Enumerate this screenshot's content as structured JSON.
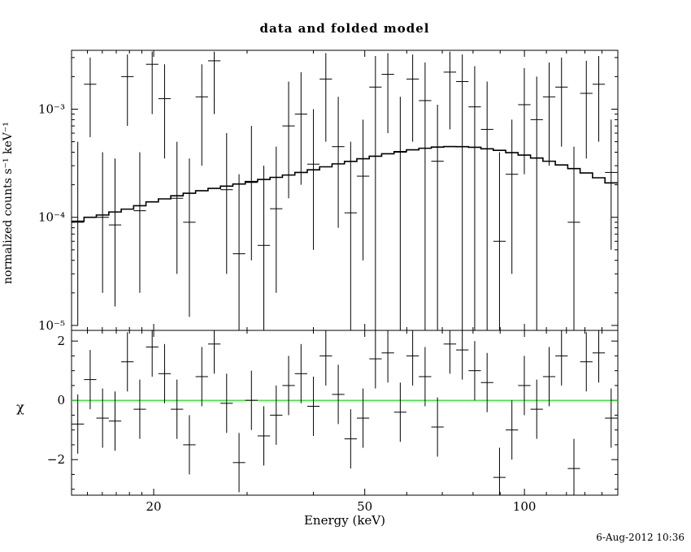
{
  "title": "data and folded model",
  "xlabel": "Energy (keV)",
  "ylabel_top": "normalized counts s⁻¹ keV⁻¹",
  "ylabel_bottom": "χ",
  "timestamp": "6-Aug-2012 10:36",
  "colors": {
    "data": "#000000",
    "model": "#000000",
    "zero_line": "#00dd00",
    "frame": "#000000",
    "background": "#ffffff"
  },
  "chart_data": {
    "type": "scatter",
    "title": "data and folded model",
    "xlabel": "Energy (keV)",
    "legend": "none",
    "grid": false,
    "panels": [
      "spectrum",
      "residuals"
    ],
    "axes": {
      "x": {
        "scale": "log",
        "min": 14,
        "max": 150,
        "major_ticks": [
          20,
          50,
          100
        ],
        "major_labels": [
          "20",
          "50",
          "100"
        ],
        "minor_ticks": [
          15,
          16,
          17,
          18,
          19,
          30,
          40,
          60,
          70,
          80,
          90,
          110,
          120,
          130,
          140,
          150
        ]
      },
      "y_top": {
        "scale": "log",
        "min": 9e-06,
        "max": 0.0035,
        "label": "normalized counts s⁻¹ keV⁻¹",
        "major_ticks": [
          1e-05,
          0.0001,
          0.001
        ],
        "major_labels": [
          "10⁻⁵",
          "10⁻⁴",
          "10⁻³"
        ]
      },
      "y_bottom": {
        "scale": "linear",
        "min": -3.2,
        "max": 2.36,
        "label": "χ",
        "major_ticks": [
          -2,
          0,
          2
        ],
        "major_labels": [
          "−2",
          "0",
          "2"
        ],
        "minor_step": 0.5
      }
    },
    "spectrum": {
      "bin_edges_kev": [
        14.0,
        14.78,
        15.59,
        16.46,
        17.37,
        18.33,
        19.34,
        20.41,
        21.54,
        22.73,
        23.99,
        25.32,
        26.72,
        28.2,
        29.76,
        31.4,
        33.14,
        34.97,
        36.91,
        38.95,
        41.1,
        43.38,
        45.78,
        48.31,
        50.98,
        53.8,
        56.78,
        59.92,
        63.24,
        66.74,
        70.43,
        74.33,
        78.44,
        82.78,
        87.36,
        92.19,
        97.29,
        102.68,
        108.36,
        114.35,
        120.68,
        127.35,
        134.4,
        141.84,
        149.68
      ],
      "data_counts": [
        9e-05,
        0.0017,
        0.0001,
        8.5e-05,
        0.002,
        0.000115,
        0.0026,
        0.00125,
        0.00015,
        9e-05,
        0.0013,
        0.0028,
        0.00018,
        4.6e-05,
        0.00021,
        5.5e-05,
        0.00012,
        0.0007,
        0.0009,
        0.00031,
        0.0019,
        0.00045,
        0.00011,
        0.00024,
        0.0016,
        0.0021,
        0.0004,
        0.0019,
        0.0012,
        0.00033,
        0.0022,
        0.0018,
        0.00105,
        0.00065,
        6e-05,
        0.00025,
        0.0011,
        0.0008,
        0.0013,
        0.0016,
        9e-05,
        0.0014,
        0.0017,
        0.00026
      ],
      "err_lo": [
        1e-05,
        0.00055,
        2e-05,
        1.5e-05,
        0.0007,
        2e-05,
        0.0009,
        0.00035,
        3e-05,
        1.2e-05,
        0.0003,
        0.0009,
        3e-05,
        8e-06,
        4e-05,
        8e-06,
        2e-05,
        0.00015,
        0.0002,
        5e-05,
        0.0005,
        8e-05,
        8e-06,
        4e-05,
        8e-06,
        0.0006,
        8e-06,
        0.0005,
        8e-06,
        8e-06,
        0.00065,
        8e-06,
        8e-06,
        8e-06,
        8e-06,
        3e-05,
        0.00025,
        8e-06,
        0.0003,
        0.00045,
        8e-06,
        0.00035,
        0.0005,
        5e-05
      ],
      "err_hi": [
        0.0005,
        0.003,
        0.0004,
        0.00035,
        0.0032,
        0.0004,
        0.0034,
        0.0026,
        0.0005,
        0.00035,
        0.0026,
        0.0034,
        0.0006,
        0.00025,
        0.0007,
        0.0003,
        0.00045,
        0.0018,
        0.0022,
        0.001,
        0.0033,
        0.0013,
        0.0005,
        0.0008,
        0.0031,
        0.0033,
        0.0013,
        0.0032,
        0.0027,
        0.0011,
        0.0034,
        0.0032,
        0.0025,
        0.0018,
        0.0004,
        0.0008,
        0.0024,
        0.002,
        0.0027,
        0.003,
        0.00045,
        0.0028,
        0.0031,
        0.0008
      ],
      "model_counts": [
        9.2e-05,
        0.0001,
        0.000105,
        0.000112,
        0.000119,
        0.000128,
        0.000139,
        0.000148,
        0.000158,
        0.000167,
        0.000176,
        0.000185,
        0.000194,
        0.000203,
        0.000214,
        0.000224,
        0.000234,
        0.000246,
        0.00026,
        0.000275,
        0.000293,
        0.000312,
        0.000329,
        0.000348,
        0.000367,
        0.000387,
        0.000405,
        0.000421,
        0.000435,
        0.000446,
        0.000451,
        0.00045,
        0.000444,
        0.00043,
        0.000416,
        0.000396,
        0.000376,
        0.000353,
        0.00033,
        0.000305,
        0.000282,
        0.000257,
        0.000232,
        0.000208
      ]
    },
    "residuals": {
      "chi": [
        -0.8,
        0.7,
        -0.6,
        -0.7,
        1.3,
        -0.3,
        1.8,
        0.9,
        -0.3,
        -1.5,
        0.8,
        1.9,
        -0.1,
        -2.1,
        0.0,
        -1.2,
        -0.5,
        0.5,
        0.9,
        -0.2,
        1.5,
        0.2,
        -1.3,
        -0.6,
        1.4,
        1.6,
        -0.4,
        1.5,
        0.8,
        -0.9,
        1.9,
        1.7,
        1.0,
        0.6,
        -2.6,
        -1.0,
        0.5,
        -0.3,
        0.8,
        1.5,
        -2.3,
        1.3,
        1.6,
        -0.6
      ],
      "chi_err": 1.0,
      "zero_line": 0
    }
  }
}
